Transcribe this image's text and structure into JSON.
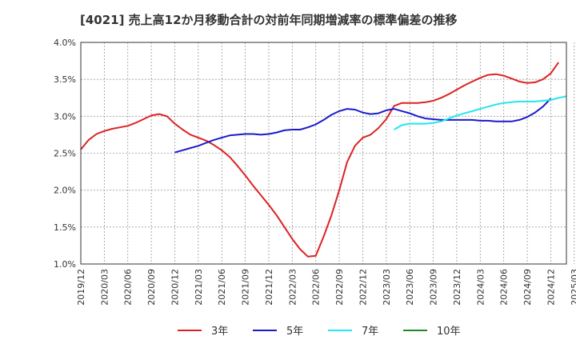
{
  "chart_data": {
    "type": "line",
    "title": "[4021]  売上高12か月移動合計の対前年同期増減率の標準偏差の推移",
    "xlabel": "",
    "ylabel": "",
    "ylim": [
      1.0,
      4.0
    ],
    "yticks": [
      "1.0%",
      "1.5%",
      "2.0%",
      "2.5%",
      "3.0%",
      "3.5%",
      "4.0%"
    ],
    "ytick_values": [
      1.0,
      1.5,
      2.0,
      2.5,
      3.0,
      3.5,
      4.0
    ],
    "xticks": [
      "2019/12",
      "2020/03",
      "2020/06",
      "2020/09",
      "2020/12",
      "2021/03",
      "2021/06",
      "2021/09",
      "2021/12",
      "2022/03",
      "2022/06",
      "2022/09",
      "2022/12",
      "2023/03",
      "2023/06",
      "2023/09",
      "2023/12",
      "2024/03",
      "2024/06",
      "2024/09",
      "2024/12",
      "2025/03"
    ],
    "grid": true,
    "legend_position": "bottom",
    "series": [
      {
        "name": "3年",
        "color": "#dd2222",
        "start_index": 0,
        "values": [
          2.55,
          2.68,
          2.76,
          2.8,
          2.83,
          2.85,
          2.87,
          2.91,
          2.96,
          3.01,
          3.03,
          3.0,
          2.9,
          2.82,
          2.75,
          2.71,
          2.67,
          2.61,
          2.54,
          2.45,
          2.33,
          2.2,
          2.06,
          1.93,
          1.8,
          1.66,
          1.5,
          1.34,
          1.2,
          1.1,
          1.11,
          1.37,
          1.66,
          2.0,
          2.38,
          2.6,
          2.71,
          2.75,
          2.84,
          2.96,
          3.14,
          3.18,
          3.18,
          3.18,
          3.19,
          3.21,
          3.25,
          3.3,
          3.36,
          3.42,
          3.47,
          3.52,
          3.56,
          3.57,
          3.55,
          3.51,
          3.47,
          3.45,
          3.46,
          3.5,
          3.58,
          3.73
        ]
      },
      {
        "name": "5年",
        "color": "#1a1acc",
        "start_index": 12,
        "values": [
          2.51,
          2.54,
          2.57,
          2.6,
          2.64,
          2.68,
          2.71,
          2.74,
          2.75,
          2.76,
          2.76,
          2.75,
          2.76,
          2.78,
          2.81,
          2.82,
          2.82,
          2.85,
          2.89,
          2.95,
          3.02,
          3.07,
          3.1,
          3.09,
          3.05,
          3.03,
          3.04,
          3.08,
          3.1,
          3.07,
          3.04,
          3.0,
          2.97,
          2.96,
          2.95,
          2.95,
          2.95,
          2.95,
          2.95,
          2.94,
          2.94,
          2.93,
          2.93,
          2.93,
          2.95,
          2.99,
          3.05,
          3.13,
          3.24
        ]
      },
      {
        "name": "7年",
        "color": "#22e6ee",
        "start_index": 40,
        "values": [
          2.82,
          2.88,
          2.9,
          2.9,
          2.9,
          2.91,
          2.93,
          2.97,
          3.01,
          3.04,
          3.07,
          3.1,
          3.13,
          3.16,
          3.18,
          3.19,
          3.2,
          3.2,
          3.2,
          3.21,
          3.22,
          3.25,
          3.27
        ]
      },
      {
        "name": "10年",
        "color": "#228822",
        "start_index": 0,
        "values": []
      }
    ]
  }
}
